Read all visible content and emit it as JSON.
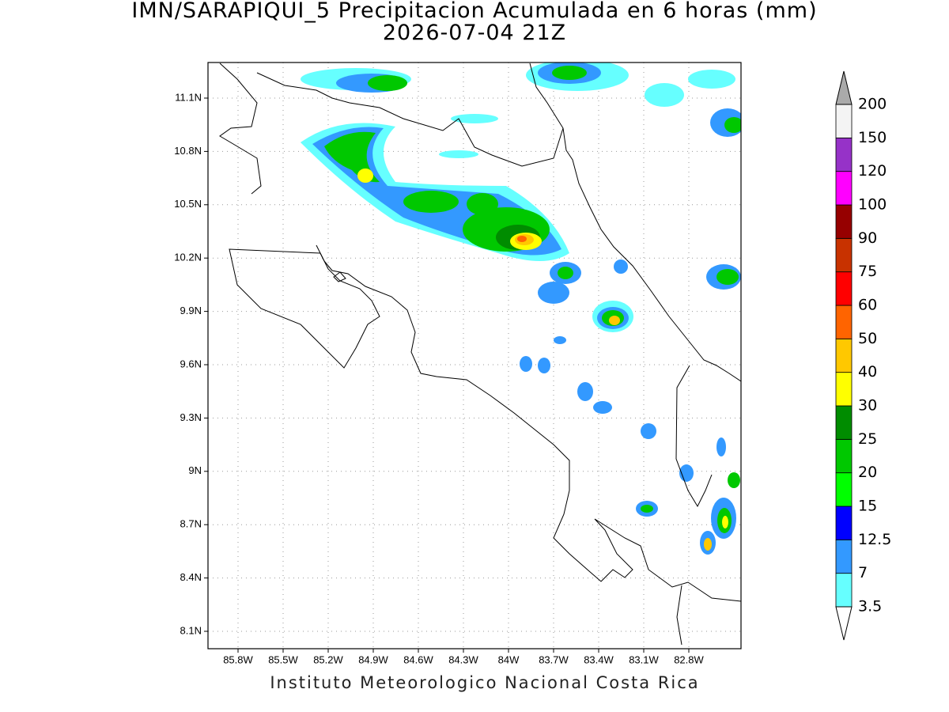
{
  "title": "IMN/SARAPIQUI_5 Precipitacion Acumulada en 6 horas (mm)",
  "subtitle": "2026-07-04 21Z",
  "map": {
    "lon_ticks": [
      "85.8W",
      "85.5W",
      "85.2W",
      "84.9W",
      "84.6W",
      "84.3W",
      "84W",
      "83.7W",
      "83.4W",
      "83.1W",
      "82.8W"
    ],
    "lat_ticks": [
      "11.1N",
      "10.8N",
      "10.5N",
      "10.2N",
      "9.9N",
      "9.6N",
      "9.3N",
      "9N",
      "8.7N",
      "8.4N",
      "8.1N"
    ]
  },
  "colorbar": {
    "labels": [
      "3.5",
      "7",
      "12.5",
      "15",
      "20",
      "25",
      "30",
      "40",
      "50",
      "60",
      "75",
      "90",
      "100",
      "120",
      "150",
      "200"
    ],
    "colors": [
      "#66ffff",
      "#3399ff",
      "#0000ff",
      "#00ff00",
      "#00c800",
      "#008c00",
      "#ffff00",
      "#ffc800",
      "#ff6400",
      "#ff0000",
      "#c83200",
      "#960000",
      "#ff00ff",
      "#9632c8",
      "#f4f4f4"
    ],
    "under_color": "#ffffff",
    "over_color": "#aaaaaa"
  },
  "footer": "Instituto Meteorologico Nacional Costa Rica"
}
